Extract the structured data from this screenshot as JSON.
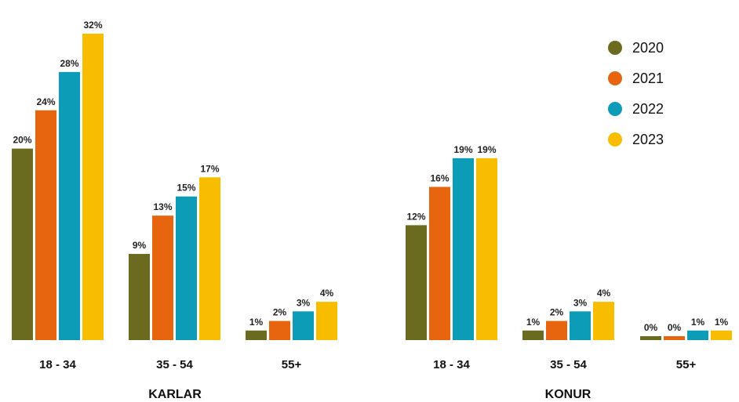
{
  "chart_data": {
    "type": "bar",
    "series": [
      {
        "name": "2020",
        "color": "#6b6b1f"
      },
      {
        "name": "2021",
        "color": "#e8650f"
      },
      {
        "name": "2022",
        "color": "#0d9cb8"
      },
      {
        "name": "2023",
        "color": "#f9bd00"
      }
    ],
    "groups": [
      {
        "label": "KARLAR",
        "categories": [
          {
            "label": "18 - 34",
            "values": [
              20,
              24,
              28,
              32
            ]
          },
          {
            "label": "35 - 54",
            "values": [
              9,
              13,
              15,
              17
            ]
          },
          {
            "label": "55+",
            "values": [
              1,
              2,
              3,
              4
            ]
          }
        ]
      },
      {
        "label": "KONUR",
        "categories": [
          {
            "label": "18 - 34",
            "values": [
              12,
              16,
              19,
              19
            ]
          },
          {
            "label": "35 - 54",
            "values": [
              1,
              2,
              3,
              4
            ]
          },
          {
            "label": "55+",
            "values": [
              0,
              0,
              1,
              1
            ]
          }
        ]
      }
    ],
    "value_suffix": "%",
    "ylim": [
      0,
      32
    ],
    "grid": false,
    "legend_position": "top-right"
  }
}
